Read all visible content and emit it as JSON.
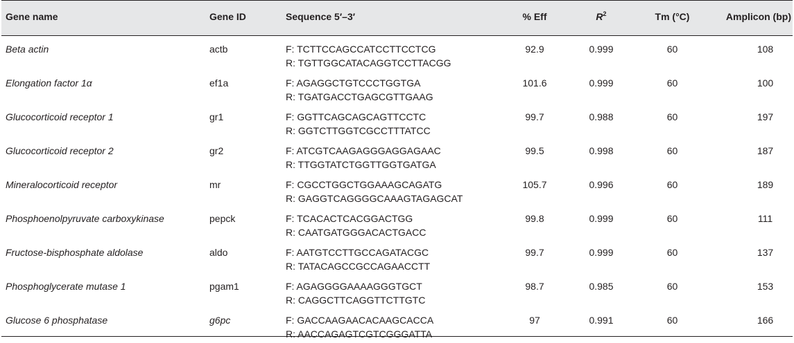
{
  "table": {
    "headers": {
      "gene_name": "Gene name",
      "gene_id": "Gene ID",
      "sequence": "Sequence 5′–3′",
      "eff": "% Eff",
      "r2_base": "R",
      "r2_sup": "2",
      "tm": "Tm (°C)",
      "amplicon": "Amplicon (bp)"
    },
    "rows": [
      {
        "gene_name": "Beta actin",
        "gene_id": "actb",
        "forward": "F: TCTTCCAGCCATCCTTCCTCG",
        "reverse": "R: TGTTGGCATACAGGTCCTTACGG",
        "eff": "92.9",
        "r2": "0.999",
        "tm": "60",
        "amplicon": "108"
      },
      {
        "gene_name": "Elongation factor 1α",
        "gene_id": "ef1a",
        "forward": "F: AGAGGCTGTCCCTGGTGA",
        "reverse": "R: TGATGACCTGAGCGTTGAAG",
        "eff": "101.6",
        "r2": "0.999",
        "tm": "60",
        "amplicon": "100"
      },
      {
        "gene_name": "Glucocorticoid receptor 1",
        "gene_id": "gr1",
        "forward": "F: GGTTCAGCAGCAGTTCCTC",
        "reverse": "R: GGTCTTGGTCGCCTTTATCC",
        "eff": "99.7",
        "r2": "0.988",
        "tm": "60",
        "amplicon": "197"
      },
      {
        "gene_name": "Glucocorticoid receptor 2",
        "gene_id": "gr2",
        "forward": "F: ATCGTCAAGAGGGAGGAGAAC",
        "reverse": "R: TTGGTATCTGGTTGGTGATGA",
        "eff": "99.5",
        "r2": "0.998",
        "tm": "60",
        "amplicon": "187"
      },
      {
        "gene_name": "Mineralocorticoid receptor",
        "gene_id": "mr",
        "forward": "F: CGCCTGGCTGGAAAGCAGATG",
        "reverse": "R: GAGGTCAGGGGCAAAGTAGAGCAT",
        "eff": "105.7",
        "r2": "0.996",
        "tm": "60",
        "amplicon": "189"
      },
      {
        "gene_name": "Phosphoenolpyruvate carboxykinase",
        "gene_id": "pepck",
        "forward": "F: TCACACTCACGGACTGG",
        "reverse": "R: CAATGATGGGACACTGACC",
        "eff": "99.8",
        "r2": "0.999",
        "tm": "60",
        "amplicon": "111"
      },
      {
        "gene_name": "Fructose-bisphosphate aldolase",
        "gene_id": "aldo",
        "forward": "F: AATGTCCTTGCCAGATACGC",
        "reverse": "R: TATACAGCCGCCAGAACCTT",
        "eff": "99.7",
        "r2": "0.999",
        "tm": "60",
        "amplicon": "137"
      },
      {
        "gene_name": "Phosphoglycerate mutase 1",
        "gene_id": "pgam1",
        "forward": "F: AGAGGGGAAAAGGGTGCT",
        "reverse": "R: CAGGCTTCAGGTTCTTGTC",
        "eff": "98.7",
        "r2": "0.985",
        "tm": "60",
        "amplicon": "153"
      },
      {
        "gene_name": "Glucose 6 phosphatase",
        "gene_id": "g6pc",
        "forward": "F: GACCAAGAACACAAGCACCA",
        "reverse": "R: AACCAGAGTCGTCGGGATTA",
        "eff": "97",
        "r2": "0.991",
        "tm": "60",
        "amplicon": "166"
      }
    ]
  }
}
